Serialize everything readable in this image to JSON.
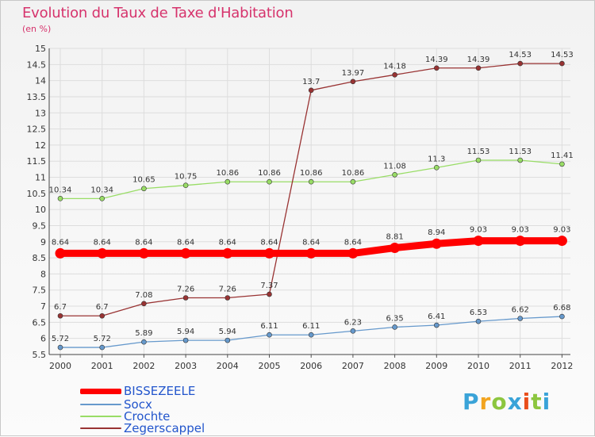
{
  "title": "Evolution du Taux de Taxe d'Habitation",
  "subtitle": "(en %)",
  "logo": {
    "letters": [
      "P",
      "r",
      "o",
      "x",
      "i",
      "t",
      "i"
    ],
    "colors": [
      "#3aa3d8",
      "#f2a41f",
      "#8cc63f",
      "#3aa3d8",
      "#e94e1b",
      "#8cc63f",
      "#3aa3d8"
    ]
  },
  "chart_data": {
    "type": "line",
    "x": [
      "2000",
      "2001",
      "2002",
      "2003",
      "2004",
      "2005",
      "2006",
      "2007",
      "2008",
      "2009",
      "2010",
      "2011",
      "2012"
    ],
    "ylim": [
      5.5,
      15
    ],
    "yticks": [
      "5.5",
      "6",
      "6.5",
      "7",
      "7.5",
      "8",
      "8.5",
      "9",
      "9.5",
      "10",
      "10.5",
      "11",
      "11.5",
      "12",
      "12.5",
      "13",
      "13.5",
      "14",
      "14.5",
      "15"
    ],
    "grid": true,
    "legend_position": "bottom-left",
    "series": [
      {
        "name": "BISSEZEELE",
        "color": "#ff0000",
        "values": [
          8.64,
          8.64,
          8.64,
          8.64,
          8.64,
          8.64,
          8.64,
          8.64,
          8.81,
          8.94,
          9.03,
          9.03,
          9.03
        ],
        "labels": [
          "8.64",
          "8.64",
          "8.64",
          "8.64",
          "8.64",
          "8.64",
          "8.64",
          "8.64",
          "8.81",
          "8.94",
          "9.03",
          "9.03",
          "9.03"
        ]
      },
      {
        "name": "Socx",
        "color": "#6699cc",
        "values": [
          5.72,
          5.72,
          5.89,
          5.94,
          5.94,
          6.11,
          6.11,
          6.23,
          6.35,
          6.41,
          6.53,
          6.62,
          6.68
        ],
        "labels": [
          "5.72",
          "5.72",
          "5.89",
          "5.94",
          "5.94",
          "6.11",
          "6.11",
          "6.23",
          "6.35",
          "6.41",
          "6.53",
          "6.62",
          "6.68"
        ]
      },
      {
        "name": "Crochte",
        "color": "#99dd66",
        "values": [
          10.34,
          10.34,
          10.65,
          10.75,
          10.86,
          10.86,
          10.86,
          10.86,
          11.08,
          11.3,
          11.53,
          11.53,
          11.41
        ],
        "labels": [
          "10.34",
          "10.34",
          "10.65",
          "10.75",
          "10.86",
          "10.86",
          "10.86",
          "10.86",
          "11.08",
          "11.3",
          "11.53",
          "11.53",
          "11.41"
        ]
      },
      {
        "name": "Zegerscappel",
        "color": "#993333",
        "values": [
          6.7,
          6.7,
          7.08,
          7.26,
          7.26,
          7.37,
          13.7,
          13.97,
          14.18,
          14.39,
          14.39,
          14.53,
          14.53
        ],
        "labels": [
          "6.7",
          "6.7",
          "7.08",
          "7.26",
          "7.26",
          "7.37",
          "13.7",
          "13.97",
          "14.18",
          "14.39",
          "14.39",
          "14.53",
          "14.53"
        ]
      }
    ]
  }
}
